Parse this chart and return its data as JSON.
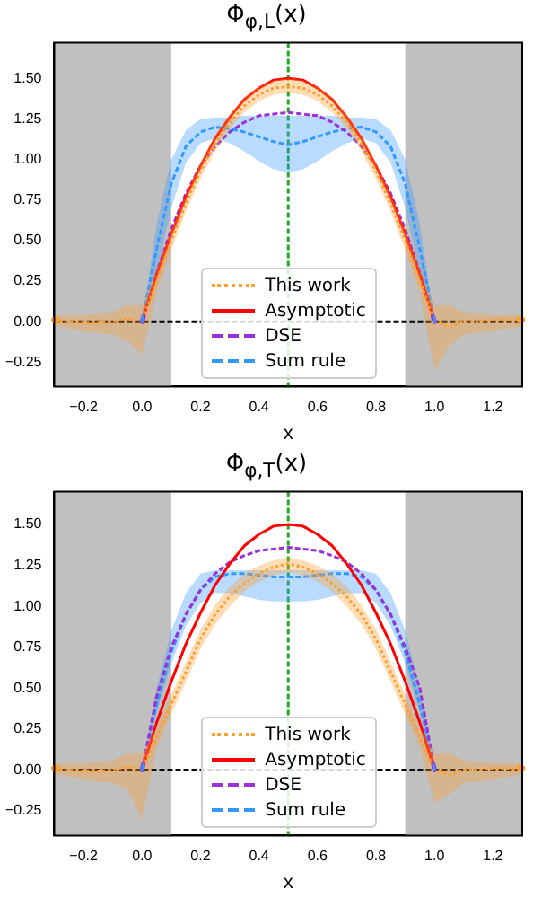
{
  "chart_data": [
    {
      "type": "line",
      "title": "Φ$_{φ,L}$(x)",
      "xlabel": "x",
      "x": [
        0,
        0.05,
        0.1,
        0.15,
        0.2,
        0.25,
        0.3,
        0.35,
        0.4,
        0.45,
        0.5,
        0.55,
        0.6,
        0.65,
        0.7,
        0.75,
        0.8,
        0.85,
        0.9,
        0.95,
        1
      ],
      "series": [
        {
          "name": "This work",
          "color": "#ff9f2e",
          "line_style": "dotted",
          "x": [
            -0.3,
            -0.25,
            -0.2,
            -0.15,
            -0.1,
            -0.05,
            0,
            0.05,
            0.1,
            0.15,
            0.2,
            0.25,
            0.3,
            0.35,
            0.4,
            0.45,
            0.5,
            0.55,
            0.6,
            0.65,
            0.7,
            0.75,
            0.8,
            0.85,
            0.9,
            0.95,
            1,
            1.05,
            1.1,
            1.15,
            1.2,
            1.25,
            1.3
          ],
          "values": [
            0.01,
            0,
            -0.01,
            -0.01,
            0,
            0.02,
            0,
            0.25,
            0.5,
            0.73,
            0.93,
            1.1,
            1.23,
            1.33,
            1.4,
            1.44,
            1.45,
            1.44,
            1.4,
            1.33,
            1.23,
            1.1,
            0.93,
            0.73,
            0.5,
            0.25,
            0,
            -0.03,
            0,
            0,
            0.01,
            0.01,
            0.01
          ],
          "lower": [
            -0.03,
            -0.04,
            -0.06,
            -0.07,
            -0.08,
            -0.12,
            -0.2,
            0.18,
            0.44,
            0.68,
            0.88,
            1.05,
            1.19,
            1.29,
            1.36,
            1.4,
            1.41,
            1.4,
            1.36,
            1.29,
            1.19,
            1.05,
            0.88,
            0.68,
            0.44,
            0.18,
            -0.3,
            -0.15,
            -0.08,
            -0.07,
            -0.06,
            -0.04,
            -0.03
          ],
          "upper": [
            0.04,
            0.04,
            0.04,
            0.05,
            0.06,
            0.1,
            0.1,
            0.32,
            0.56,
            0.78,
            0.98,
            1.15,
            1.28,
            1.38,
            1.45,
            1.49,
            1.5,
            1.49,
            1.45,
            1.38,
            1.28,
            1.15,
            0.98,
            0.78,
            0.56,
            0.32,
            0.1,
            0.1,
            0.06,
            0.05,
            0.04,
            0.04,
            0.04
          ]
        },
        {
          "name": "Asymptotic",
          "color": "#ff0000",
          "line_style": "solid",
          "values": [
            0,
            0.29,
            0.54,
            0.77,
            0.96,
            1.13,
            1.26,
            1.37,
            1.44,
            1.49,
            1.5,
            1.49,
            1.44,
            1.37,
            1.26,
            1.13,
            0.96,
            0.77,
            0.54,
            0.29,
            0
          ]
        },
        {
          "name": "DSE",
          "color": "#9b30d9",
          "line_style": "dashed",
          "values": [
            0,
            0.3,
            0.57,
            0.79,
            0.96,
            1.08,
            1.17,
            1.23,
            1.27,
            1.28,
            1.29,
            1.28,
            1.27,
            1.23,
            1.17,
            1.08,
            0.96,
            0.79,
            0.57,
            0.3,
            0
          ]
        },
        {
          "name": "Sum rule",
          "color": "#3399ff",
          "line_style": "dashed",
          "values": [
            0,
            0.45,
            0.85,
            1.08,
            1.17,
            1.2,
            1.19,
            1.17,
            1.14,
            1.11,
            1.09,
            1.11,
            1.14,
            1.17,
            1.19,
            1.2,
            1.17,
            1.08,
            0.85,
            0.45,
            0
          ],
          "lower": [
            0,
            0.3,
            0.7,
            0.98,
            1.1,
            1.13,
            1.1,
            1.05,
            0.99,
            0.94,
            0.92,
            0.94,
            0.99,
            1.05,
            1.1,
            1.13,
            1.1,
            0.98,
            0.7,
            0.3,
            0
          ],
          "upper": [
            0,
            0.6,
            1.0,
            1.18,
            1.25,
            1.26,
            1.26,
            1.27,
            1.27,
            1.27,
            1.27,
            1.27,
            1.27,
            1.27,
            1.26,
            1.26,
            1.25,
            1.18,
            1.0,
            0.6,
            0
          ]
        }
      ],
      "xlim": [
        -0.3,
        1.3
      ],
      "ylim": [
        -0.4,
        1.72
      ],
      "xticks": [
        {
          "value": -0.2,
          "label": "−0.2"
        },
        {
          "value": 0,
          "label": "0.0"
        },
        {
          "value": 0.2,
          "label": "0.2"
        },
        {
          "value": 0.4,
          "label": "0.4"
        },
        {
          "value": 0.6,
          "label": "0.6"
        },
        {
          "value": 0.8,
          "label": "0.8"
        },
        {
          "value": 1,
          "label": "1.0"
        },
        {
          "value": 1.2,
          "label": "1.2"
        }
      ],
      "yticks": [
        {
          "value": -0.25,
          "label": "−0.25"
        },
        {
          "value": 0,
          "label": "0.00"
        },
        {
          "value": 0.25,
          "label": "0.25"
        },
        {
          "value": 0.5,
          "label": "0.50"
        },
        {
          "value": 0.75,
          "label": "0.75"
        },
        {
          "value": 1,
          "label": "1.00"
        },
        {
          "value": 1.25,
          "label": "1.25"
        },
        {
          "value": 1.5,
          "label": "1.50"
        }
      ],
      "bands": [
        {
          "axis": "x",
          "from": -0.3,
          "to": 0.1,
          "color": "#c0c0c0"
        },
        {
          "axis": "x",
          "from": 0.9,
          "to": 1.3,
          "color": "#c0c0c0"
        }
      ],
      "ref_lines": [
        {
          "axis": "y",
          "value": 0,
          "color": "#000000",
          "line_style": "dashed"
        },
        {
          "axis": "x",
          "value": 0.5,
          "color": "#22aa22",
          "line_style": "dashed"
        }
      ],
      "legend": "bottom",
      "grid": false,
      "marker": "none"
    },
    {
      "type": "line",
      "title": "Φ$_{φ,T}$(x)",
      "xlabel": "x",
      "x": [
        0,
        0.05,
        0.1,
        0.15,
        0.2,
        0.25,
        0.3,
        0.35,
        0.4,
        0.45,
        0.5,
        0.55,
        0.6,
        0.65,
        0.7,
        0.75,
        0.8,
        0.85,
        0.9,
        0.95,
        1
      ],
      "series": [
        {
          "name": "This work",
          "color": "#ff9f2e",
          "line_style": "dotted",
          "x": [
            -0.3,
            -0.25,
            -0.2,
            -0.15,
            -0.1,
            -0.05,
            0,
            0.05,
            0.1,
            0.15,
            0.2,
            0.25,
            0.3,
            0.35,
            0.4,
            0.45,
            0.5,
            0.55,
            0.6,
            0.65,
            0.7,
            0.75,
            0.8,
            0.85,
            0.9,
            0.95,
            1,
            1.05,
            1.1,
            1.15,
            1.2,
            1.25,
            1.3
          ],
          "values": [
            0.01,
            0,
            -0.01,
            -0.01,
            0,
            0.02,
            0,
            0.2,
            0.4,
            0.6,
            0.8,
            0.95,
            1.06,
            1.14,
            1.2,
            1.24,
            1.26,
            1.24,
            1.2,
            1.14,
            1.06,
            0.95,
            0.8,
            0.6,
            0.4,
            0.2,
            0,
            -0.03,
            0,
            0,
            0.01,
            0.01,
            0.01
          ],
          "lower": [
            -0.03,
            -0.04,
            -0.06,
            -0.07,
            -0.08,
            -0.12,
            -0.3,
            0.14,
            0.34,
            0.54,
            0.74,
            0.89,
            1.0,
            1.09,
            1.15,
            1.19,
            1.21,
            1.19,
            1.15,
            1.09,
            1.0,
            0.89,
            0.74,
            0.54,
            0.34,
            0.14,
            -0.2,
            -0.15,
            -0.08,
            -0.07,
            -0.06,
            -0.04,
            -0.03
          ],
          "upper": [
            0.04,
            0.04,
            0.04,
            0.05,
            0.06,
            0.1,
            0.1,
            0.26,
            0.46,
            0.66,
            0.86,
            1.01,
            1.12,
            1.2,
            1.25,
            1.28,
            1.3,
            1.28,
            1.25,
            1.2,
            1.12,
            1.01,
            0.86,
            0.66,
            0.46,
            0.26,
            0.1,
            0.1,
            0.06,
            0.05,
            0.04,
            0.04,
            0.04
          ]
        },
        {
          "name": "Asymptotic",
          "color": "#ff0000",
          "line_style": "solid",
          "values": [
            0,
            0.29,
            0.54,
            0.77,
            0.96,
            1.13,
            1.26,
            1.37,
            1.44,
            1.49,
            1.5,
            1.49,
            1.44,
            1.37,
            1.26,
            1.13,
            0.96,
            0.77,
            0.54,
            0.29,
            0
          ]
        },
        {
          "name": "DSE",
          "color": "#9b30d9",
          "line_style": "dashed",
          "values": [
            0,
            0.45,
            0.75,
            0.95,
            1.1,
            1.2,
            1.27,
            1.31,
            1.34,
            1.35,
            1.36,
            1.35,
            1.34,
            1.31,
            1.27,
            1.2,
            1.1,
            0.95,
            0.75,
            0.5,
            0
          ]
        },
        {
          "name": "Sum rule",
          "color": "#3399ff",
          "line_style": "dashed",
          "values": [
            0,
            0.4,
            0.72,
            0.95,
            1.1,
            1.18,
            1.2,
            1.2,
            1.19,
            1.18,
            1.18,
            1.18,
            1.19,
            1.2,
            1.2,
            1.18,
            1.1,
            0.95,
            0.72,
            0.4,
            0
          ],
          "lower": [
            0,
            0.35,
            0.65,
            0.88,
            1.02,
            1.08,
            1.08,
            1.06,
            1.04,
            1.03,
            1.03,
            1.03,
            1.04,
            1.06,
            1.08,
            1.08,
            1.02,
            0.88,
            0.65,
            0.35,
            0
          ],
          "upper": [
            0,
            0.5,
            0.85,
            1.08,
            1.2,
            1.22,
            1.22,
            1.22,
            1.22,
            1.22,
            1.22,
            1.22,
            1.22,
            1.22,
            1.22,
            1.22,
            1.2,
            1.08,
            0.85,
            0.5,
            0
          ]
        }
      ],
      "xlim": [
        -0.3,
        1.3
      ],
      "ylim": [
        -0.4,
        1.7
      ],
      "xticks": [
        {
          "value": -0.2,
          "label": "−0.2"
        },
        {
          "value": 0,
          "label": "0.0"
        },
        {
          "value": 0.2,
          "label": "0.2"
        },
        {
          "value": 0.4,
          "label": "0.4"
        },
        {
          "value": 0.6,
          "label": "0.6"
        },
        {
          "value": 0.8,
          "label": "0.8"
        },
        {
          "value": 1,
          "label": "1.0"
        },
        {
          "value": 1.2,
          "label": "1.2"
        }
      ],
      "yticks": [
        {
          "value": -0.25,
          "label": "−0.25"
        },
        {
          "value": 0,
          "label": "0.00"
        },
        {
          "value": 0.25,
          "label": "0.25"
        },
        {
          "value": 0.5,
          "label": "0.50"
        },
        {
          "value": 0.75,
          "label": "0.75"
        },
        {
          "value": 1,
          "label": "1.00"
        },
        {
          "value": 1.25,
          "label": "1.25"
        },
        {
          "value": 1.5,
          "label": "1.50"
        }
      ],
      "bands": [
        {
          "axis": "x",
          "from": -0.3,
          "to": 0.1,
          "color": "#c0c0c0"
        },
        {
          "axis": "x",
          "from": 0.9,
          "to": 1.3,
          "color": "#c0c0c0"
        }
      ],
      "ref_lines": [
        {
          "axis": "y",
          "value": 0,
          "color": "#000000",
          "line_style": "dashed"
        },
        {
          "axis": "x",
          "value": 0.5,
          "color": "#22aa22",
          "line_style": "dashed"
        }
      ],
      "legend": "bottom",
      "grid": false,
      "marker": "none"
    }
  ]
}
